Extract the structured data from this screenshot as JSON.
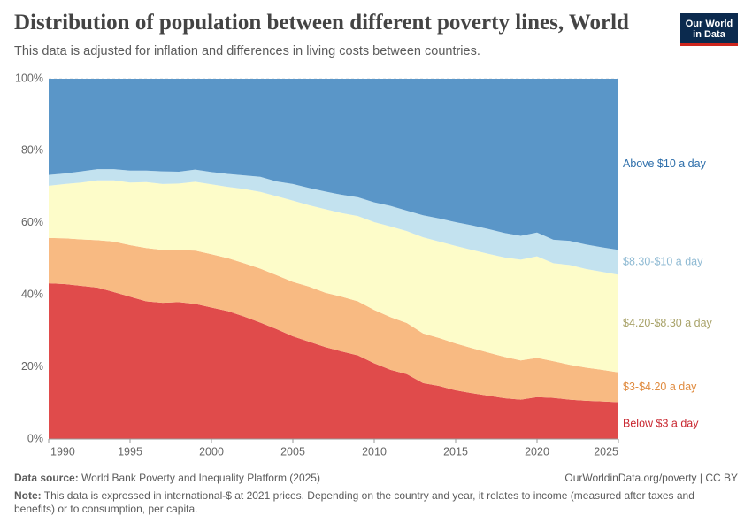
{
  "header": {
    "title": "Distribution of population between different poverty lines, World",
    "subtitle": "This data is adjusted for inflation and differences in living costs between countries.",
    "logo": [
      "Our World",
      "in Data"
    ]
  },
  "chart_data": {
    "type": "stacked-area",
    "x": [
      1990,
      1991,
      1992,
      1993,
      1994,
      1995,
      1996,
      1997,
      1998,
      1999,
      2000,
      2001,
      2002,
      2003,
      2004,
      2005,
      2006,
      2007,
      2008,
      2009,
      2010,
      2011,
      2012,
      2013,
      2014,
      2015,
      2016,
      2017,
      2018,
      2019,
      2020,
      2021,
      2022,
      2023,
      2024,
      2025
    ],
    "xlim": [
      1990,
      2025
    ],
    "xticks": [
      1990,
      1995,
      2000,
      2005,
      2010,
      2015,
      2020,
      2025
    ],
    "ylim": [
      0,
      100
    ],
    "yticks": [
      {
        "value": 0,
        "label": "0%"
      },
      {
        "value": 20,
        "label": "20%"
      },
      {
        "value": 40,
        "label": "40%"
      },
      {
        "value": 60,
        "label": "60%"
      },
      {
        "value": 80,
        "label": "80%"
      },
      {
        "value": 100,
        "label": "100%"
      }
    ],
    "grid": true,
    "series": [
      {
        "name": "Below $3 a day",
        "color": "#e04b4b",
        "label_color": "#c8262f",
        "values": [
          43.2,
          43,
          42.5,
          42,
          40.8,
          39.5,
          38.2,
          37.8,
          38,
          37.5,
          36.5,
          35.5,
          34,
          32.3,
          30.5,
          28.5,
          27,
          25.5,
          24.3,
          23.2,
          21,
          19.2,
          18,
          15.5,
          14.7,
          13.5,
          12.7,
          12,
          11.3,
          10.9,
          11.6,
          11.4,
          10.9,
          10.6,
          10.4,
          10.2
        ]
      },
      {
        "name": "$3-$4.20 a day",
        "color": "#f8ba82",
        "label_color": "#e08b3f",
        "values": [
          12.6,
          12.7,
          12.9,
          13.2,
          14,
          14.3,
          14.8,
          14.7,
          14.4,
          14.8,
          14.8,
          14.7,
          14.8,
          15,
          15,
          15.1,
          15.3,
          15.1,
          15.2,
          15,
          14.8,
          14.6,
          14.2,
          13.8,
          13.3,
          13,
          12.5,
          12,
          11.5,
          10.9,
          10.9,
          10.2,
          9.7,
          9.2,
          8.8,
          8.3
        ]
      },
      {
        "name": "$4.20-$8.30 a day",
        "color": "#fdfcc9",
        "label_color": "#a9a36a",
        "values": [
          14.5,
          15.1,
          15.8,
          16.6,
          17,
          17.4,
          18.3,
          18.3,
          18.5,
          19.1,
          19.4,
          19.8,
          20.6,
          21.3,
          21.9,
          22.6,
          22.6,
          23.2,
          23.2,
          23.7,
          24.4,
          25.2,
          25.5,
          26.7,
          26.8,
          27.1,
          27.3,
          27.4,
          27.6,
          28,
          28.2,
          27.2,
          27.7,
          27.4,
          27.2,
          27.1
        ]
      },
      {
        "name": "$8.30-$10 a day",
        "color": "#c3e2ef",
        "label_color": "#8fbad3",
        "values": [
          3,
          2.9,
          3.1,
          3.1,
          3.1,
          3.3,
          3.2,
          3.5,
          3.3,
          3.4,
          3.4,
          3.6,
          3.8,
          4.2,
          4.1,
          4.6,
          4.8,
          4.9,
          5.1,
          5.2,
          5.5,
          5.7,
          5.7,
          6.1,
          6.4,
          6.6,
          6.8,
          6.9,
          6.8,
          6.6,
          6.6,
          6.5,
          6.7,
          6.8,
          6.8,
          6.9
        ]
      },
      {
        "name": "Above $10 a day",
        "color": "#5a96c8",
        "label_color": "#2d6eaa",
        "values": [
          26.7,
          26.3,
          25.7,
          25.1,
          25.1,
          25.5,
          25.5,
          25.7,
          25.8,
          25.2,
          25.9,
          26.4,
          26.8,
          27.2,
          28.5,
          29.2,
          30.3,
          31.3,
          32.2,
          32.9,
          34.3,
          35.3,
          36.6,
          37.9,
          38.8,
          39.8,
          40.7,
          41.7,
          42.8,
          43.6,
          42.7,
          44.7,
          45,
          46,
          46.8,
          47.5
        ]
      }
    ]
  },
  "footer": {
    "source_label": "Data source:",
    "source": "World Bank Poverty and Inequality Platform (2025)",
    "credit": "OurWorldinData.org/poverty | CC BY",
    "note_label": "Note:",
    "note": "This data is expressed in international-$ at 2021 prices. Depending on the country and year, it relates to income (measured after taxes and benefits) or to consumption, per capita."
  }
}
